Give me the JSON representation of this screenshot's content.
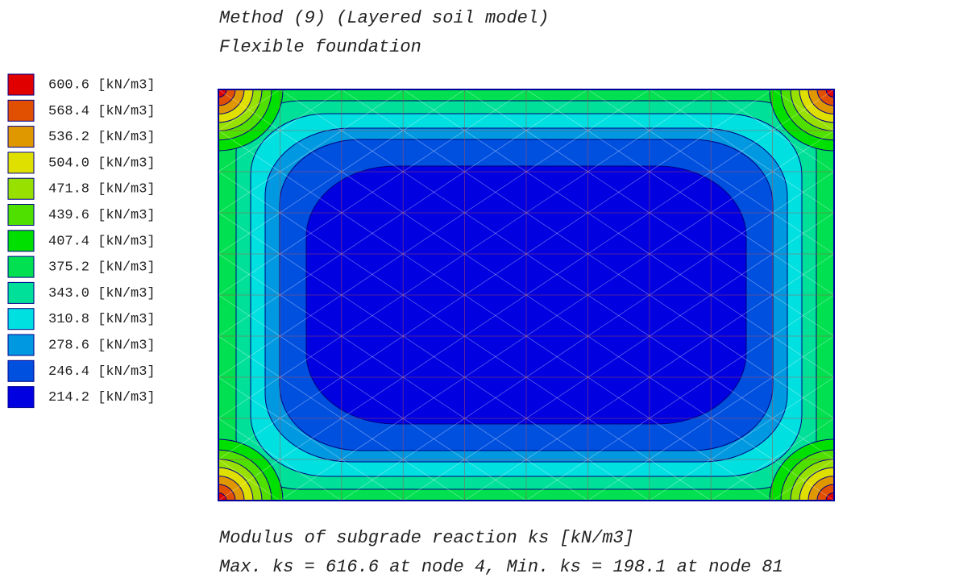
{
  "chart_data": {
    "type": "contour",
    "title": "Method (9) (Layered soil model)",
    "subtitle": "Flexible foundation",
    "caption": "Modulus of subgrade reaction ks [kN/m3]",
    "note": "Max. ks = 616.6 at node 4, Min. ks = 198.1 at node 81",
    "levels": [
      {
        "value": 600.6,
        "label": "600.6 [kN/m3]",
        "color": "#e00000"
      },
      {
        "value": 568.4,
        "label": "568.4 [kN/m3]",
        "color": "#e05000"
      },
      {
        "value": 536.2,
        "label": "536.2 [kN/m3]",
        "color": "#e09800"
      },
      {
        "value": 504.0,
        "label": "504.0 [kN/m3]",
        "color": "#e0e000"
      },
      {
        "value": 471.8,
        "label": "471.8 [kN/m3]",
        "color": "#98e000"
      },
      {
        "value": 439.6,
        "label": "439.6 [kN/m3]",
        "color": "#50e000"
      },
      {
        "value": 407.4,
        "label": "407.4 [kN/m3]",
        "color": "#00e000"
      },
      {
        "value": 375.2,
        "label": "375.2 [kN/m3]",
        "color": "#00e050"
      },
      {
        "value": 343.0,
        "label": "343.0 [kN/m3]",
        "color": "#00e098"
      },
      {
        "value": 310.8,
        "label": "310.8 [kN/m3]",
        "color": "#00e0e0"
      },
      {
        "value": 278.6,
        "label": "278.6 [kN/m3]",
        "color": "#0098e0"
      },
      {
        "value": 246.4,
        "label": "246.4 [kN/m3]",
        "color": "#0050e0"
      },
      {
        "value": 214.2,
        "label": "214.2 [kN/m3]",
        "color": "#0000e0"
      }
    ]
  }
}
